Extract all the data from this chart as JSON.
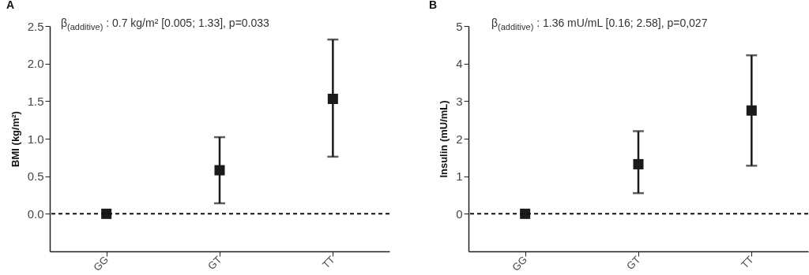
{
  "chart_data": [
    {
      "type": "scatter",
      "title": "A",
      "ylabel": "BMI (kg/m²)",
      "categories": [
        "GG",
        "GT",
        "TT"
      ],
      "values": [
        0,
        0.58,
        1.53
      ],
      "errors": [
        null,
        [
          0.14,
          1.02
        ],
        [
          0.76,
          2.32
        ]
      ],
      "color": "#1a1a1a",
      "marker": "square",
      "ylim": [
        -0.5,
        2.5
      ],
      "yticks": [
        {
          "value": 0,
          "label": "0.0"
        },
        {
          "value": 0.5,
          "label": "0.5"
        },
        {
          "value": 1,
          "label": "1.0"
        },
        {
          "value": 1.5,
          "label": "1.5"
        },
        {
          "value": 2,
          "label": "2.0"
        },
        {
          "value": 2.5,
          "label": "2.5"
        }
      ],
      "ref_lines": [
        {
          "axis": "y",
          "value": 0,
          "line_style": "dashed"
        }
      ],
      "annotations": [
        "β$_{(additive)}$ : 0.7 kg/m² [0.005; 1.33], p=0.033"
      ]
    },
    {
      "type": "scatter",
      "title": "B",
      "ylabel": "Insulin (mU/mL)",
      "categories": [
        "GG",
        "GT",
        "TT"
      ],
      "values": [
        0,
        1.32,
        2.75
      ],
      "errors": [
        null,
        [
          0.55,
          2.2
        ],
        [
          1.28,
          4.22
        ]
      ],
      "color": "#1a1a1a",
      "marker": "square",
      "ylim": [
        -1,
        5
      ],
      "yticks": [
        0,
        1,
        2,
        3,
        4,
        5
      ],
      "ref_lines": [
        {
          "axis": "y",
          "value": 0,
          "line_style": "dashed"
        }
      ],
      "annotations": [
        "β$_{(additive)}$ : 1.36 mU/mL [0.16; 2.58], p=0,027"
      ]
    }
  ]
}
